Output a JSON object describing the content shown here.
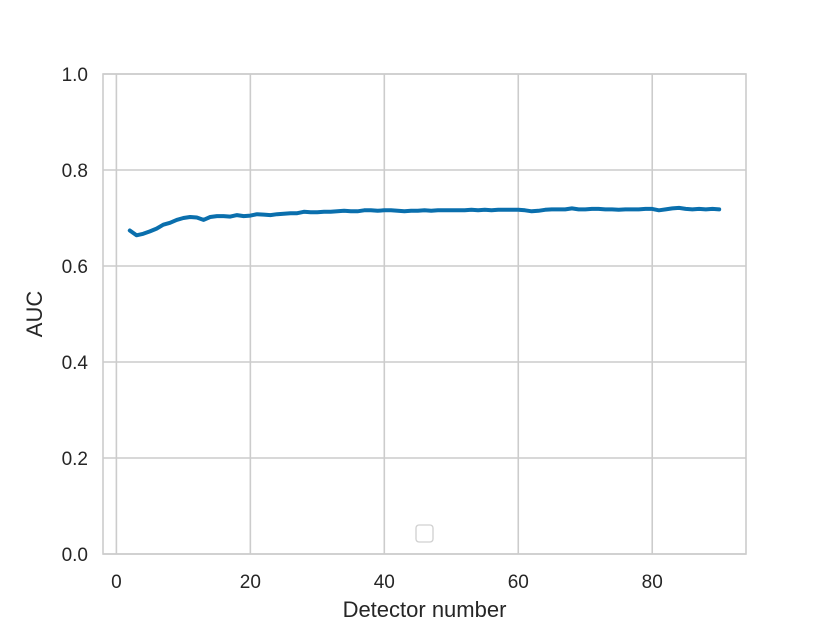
{
  "chart_data": {
    "type": "line",
    "title": "",
    "xlabel": "Detector number",
    "ylabel": "AUC",
    "xlim": [
      -2,
      94
    ],
    "ylim": [
      0.0,
      1.0
    ],
    "xticks": [
      0,
      20,
      40,
      60,
      80
    ],
    "yticks": [
      0.0,
      0.2,
      0.4,
      0.6,
      0.8,
      1.0
    ],
    "xtick_labels": [
      "0",
      "20",
      "40",
      "60",
      "80"
    ],
    "ytick_labels": [
      "0.0",
      "0.2",
      "0.4",
      "0.6",
      "0.8",
      "1.0"
    ],
    "grid": true,
    "legend": "bottom-center (empty)",
    "series": [
      {
        "color": "#0a6fad",
        "x": [
          2,
          3,
          4,
          5,
          6,
          7,
          8,
          9,
          10,
          11,
          12,
          13,
          14,
          15,
          16,
          17,
          18,
          19,
          20,
          21,
          22,
          23,
          24,
          25,
          26,
          27,
          28,
          29,
          30,
          31,
          32,
          33,
          34,
          35,
          36,
          37,
          38,
          39,
          40,
          41,
          42,
          43,
          44,
          45,
          46,
          47,
          48,
          49,
          50,
          51,
          52,
          53,
          54,
          55,
          56,
          57,
          58,
          59,
          60,
          61,
          62,
          63,
          64,
          65,
          66,
          67,
          68,
          69,
          70,
          71,
          72,
          73,
          74,
          75,
          76,
          77,
          78,
          79,
          80,
          81,
          82,
          83,
          84,
          85,
          86,
          87,
          88,
          89,
          90
        ],
        "y": [
          0.674,
          0.664,
          0.667,
          0.672,
          0.678,
          0.686,
          0.69,
          0.696,
          0.7,
          0.702,
          0.701,
          0.696,
          0.702,
          0.704,
          0.704,
          0.703,
          0.706,
          0.704,
          0.705,
          0.708,
          0.707,
          0.706,
          0.708,
          0.709,
          0.71,
          0.71,
          0.713,
          0.712,
          0.712,
          0.713,
          0.713,
          0.714,
          0.715,
          0.714,
          0.714,
          0.716,
          0.716,
          0.715,
          0.716,
          0.716,
          0.715,
          0.714,
          0.715,
          0.715,
          0.716,
          0.715,
          0.716,
          0.716,
          0.716,
          0.716,
          0.716,
          0.717,
          0.716,
          0.717,
          0.716,
          0.717,
          0.717,
          0.717,
          0.717,
          0.716,
          0.714,
          0.715,
          0.717,
          0.718,
          0.718,
          0.718,
          0.72,
          0.718,
          0.718,
          0.719,
          0.719,
          0.718,
          0.718,
          0.717,
          0.718,
          0.718,
          0.718,
          0.719,
          0.719,
          0.716,
          0.718,
          0.72,
          0.721,
          0.719,
          0.718,
          0.719,
          0.718,
          0.719,
          0.718
        ]
      }
    ]
  }
}
